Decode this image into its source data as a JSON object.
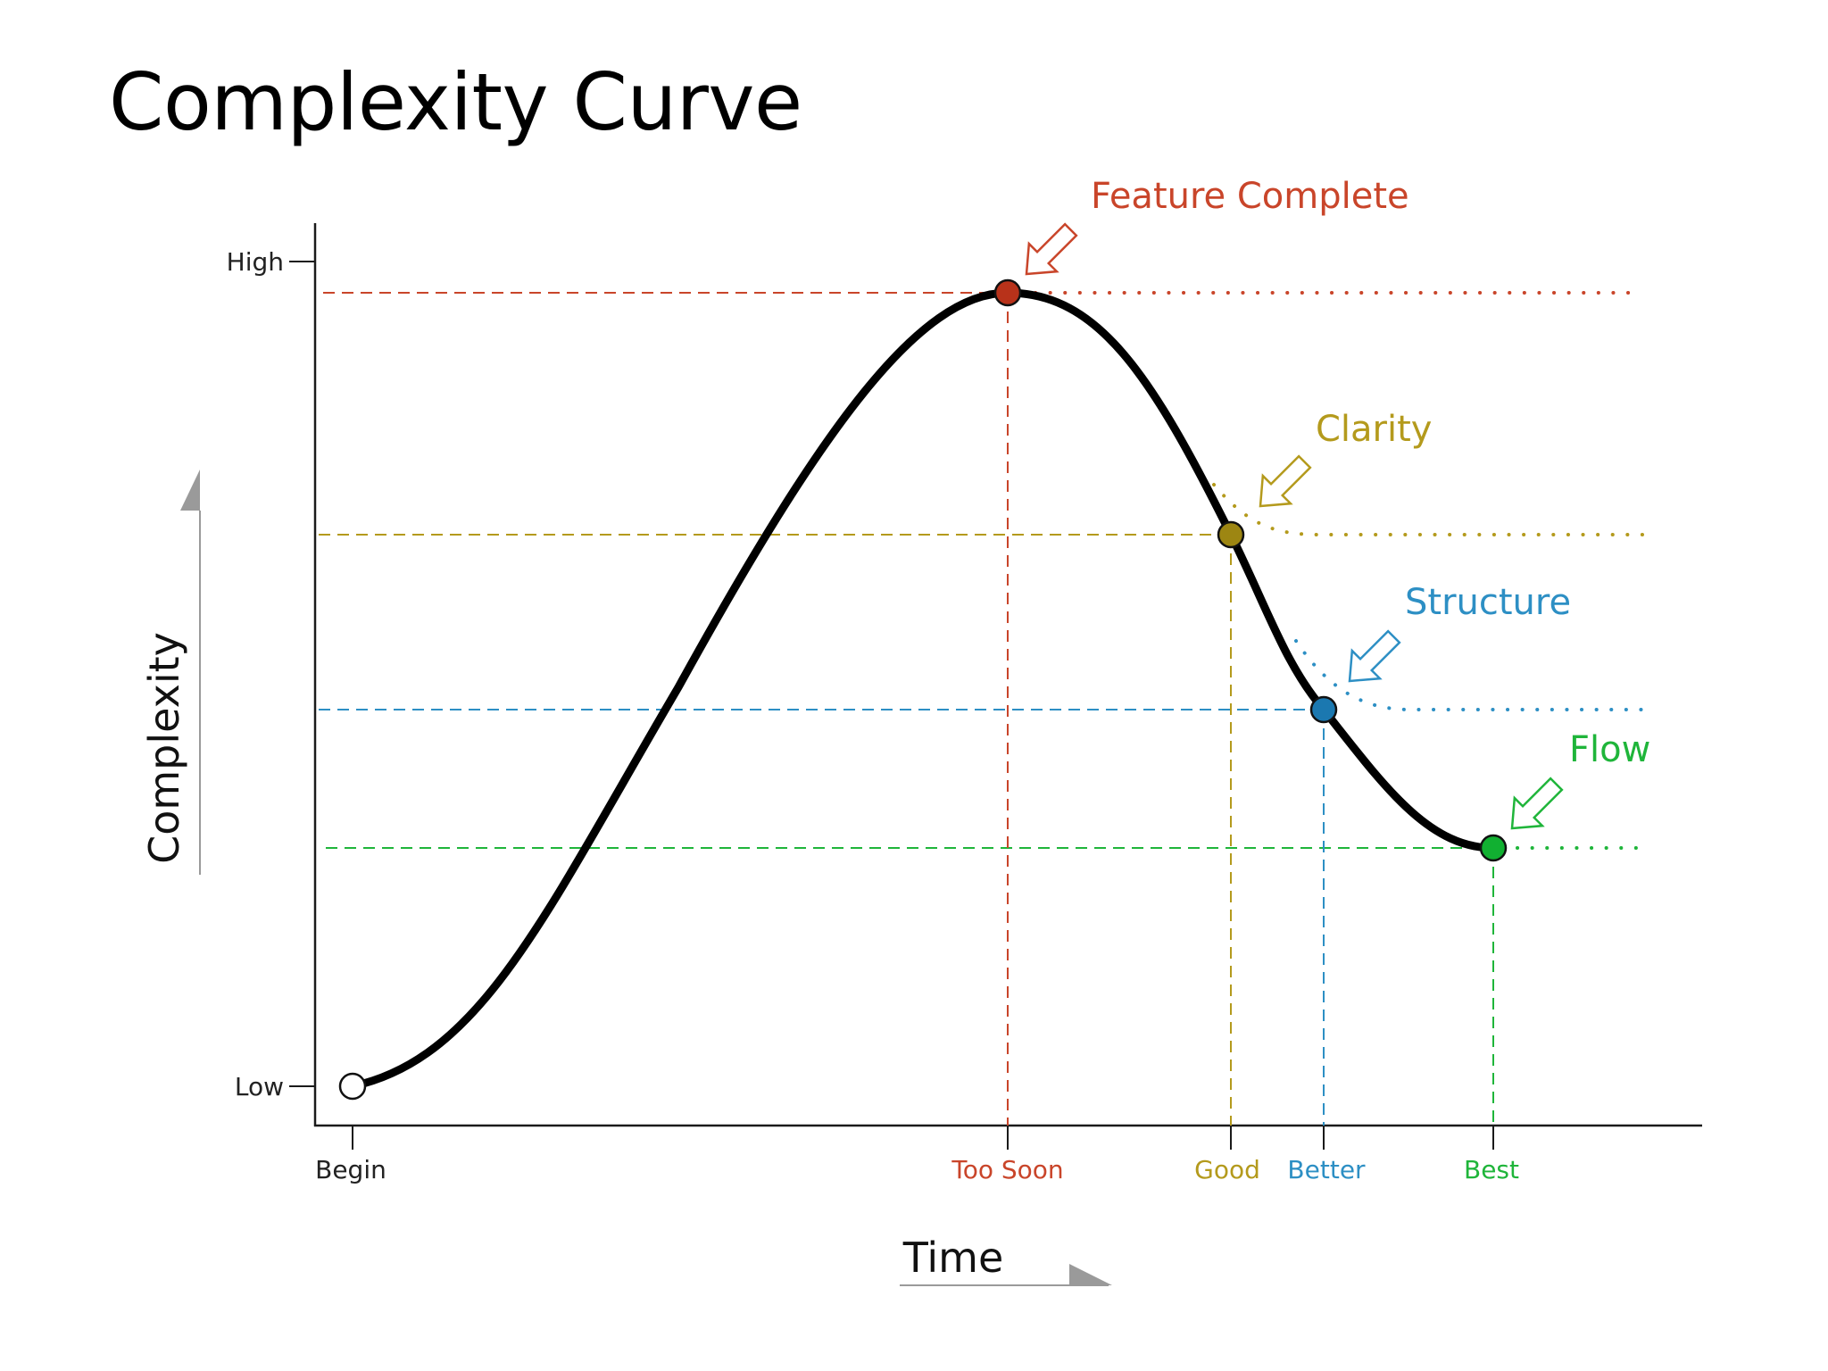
{
  "title": "Complexity Curve",
  "colors": {
    "axis": "#1a1a1a",
    "curve": "#000000",
    "feature_complete": "#c9452a",
    "clarity": "#b49a1c",
    "structure": "#2d8fc4",
    "flow": "#1fb53a",
    "axis_arrow": "#9a9a9a"
  },
  "axes": {
    "y_title": "Complexity",
    "x_title": "Time",
    "y_ticks": [
      {
        "label": "High"
      },
      {
        "label": "Low"
      }
    ],
    "x_ticks": [
      {
        "label": "Begin",
        "color": "#1a1a1a"
      },
      {
        "label": "Too Soon",
        "color": "#c9452a"
      },
      {
        "label": "Good",
        "color": "#b49a1c"
      },
      {
        "label": "Better",
        "color": "#2d8fc4"
      },
      {
        "label": "Best",
        "color": "#1fb53a"
      }
    ]
  },
  "milestones": [
    {
      "key": "feature_complete",
      "callout": "Feature Complete",
      "time_label": "Too Soon",
      "color": "#c9452a"
    },
    {
      "key": "clarity",
      "callout": "Clarity",
      "time_label": "Good",
      "color": "#b49a1c"
    },
    {
      "key": "structure",
      "callout": "Structure",
      "time_label": "Better",
      "color": "#2d8fc4"
    },
    {
      "key": "flow",
      "callout": "Flow",
      "time_label": "Best",
      "color": "#1fb53a"
    }
  ],
  "start_point": {
    "time_label": "Begin",
    "complexity_label": "Low"
  }
}
